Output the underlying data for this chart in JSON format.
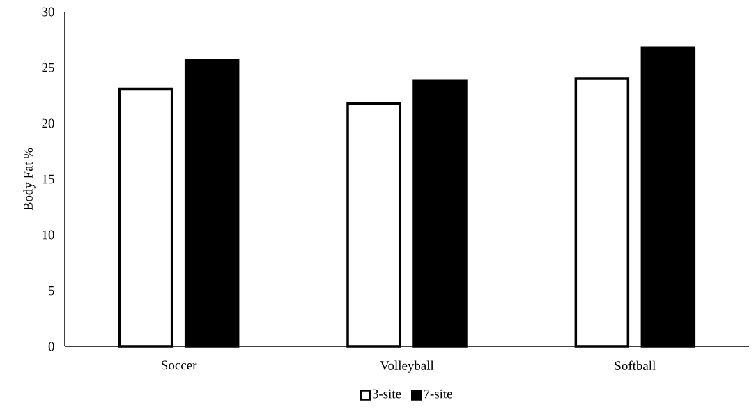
{
  "chart_data": {
    "type": "bar",
    "ylabel": "Body Fat %",
    "categories": [
      "Soccer",
      "Volleyball",
      "Softball"
    ],
    "series": [
      {
        "name": "3-site",
        "color": "#ffffff",
        "values": [
          23.1,
          21.8,
          24.0
        ]
      },
      {
        "name": "7-site",
        "color": "#000000",
        "values": [
          25.7,
          23.8,
          26.8
        ]
      }
    ],
    "ylim": [
      0,
      30
    ],
    "yticks": [
      0,
      5,
      10,
      15,
      20,
      25,
      30
    ],
    "grid": false,
    "legend": "bottom"
  }
}
